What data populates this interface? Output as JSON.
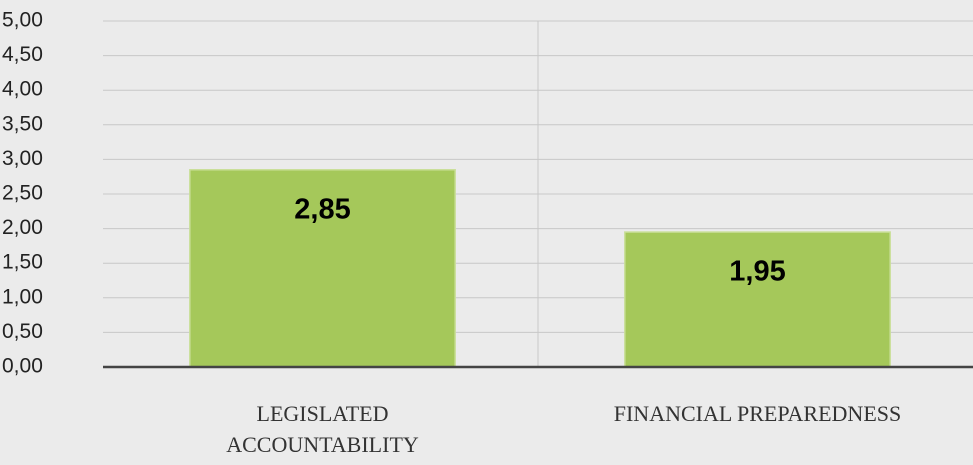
{
  "chart_data": {
    "type": "bar",
    "categories": [
      "LEGISLATED ACCOUNTABILITY",
      "FINANCIAL PREPAREDNESS"
    ],
    "values": [
      2.85,
      1.95
    ],
    "value_labels": [
      "2,85",
      "1,95"
    ],
    "color": "#a5c85a",
    "ylim": [
      0,
      5
    ],
    "yticks": [
      {
        "value": 0,
        "label": "0,00"
      },
      {
        "value": 0.5,
        "label": "0,50"
      },
      {
        "value": 1,
        "label": "1,00"
      },
      {
        "value": 1.5,
        "label": "1,50"
      },
      {
        "value": 2,
        "label": "2,00"
      },
      {
        "value": 2.5,
        "label": "2,50"
      },
      {
        "value": 3,
        "label": "3,00"
      },
      {
        "value": 3.5,
        "label": "3,50"
      },
      {
        "value": 4,
        "label": "4,00"
      },
      {
        "value": 4.5,
        "label": "4,50"
      },
      {
        "value": 5,
        "label": "5,00"
      }
    ],
    "grid": true
  }
}
